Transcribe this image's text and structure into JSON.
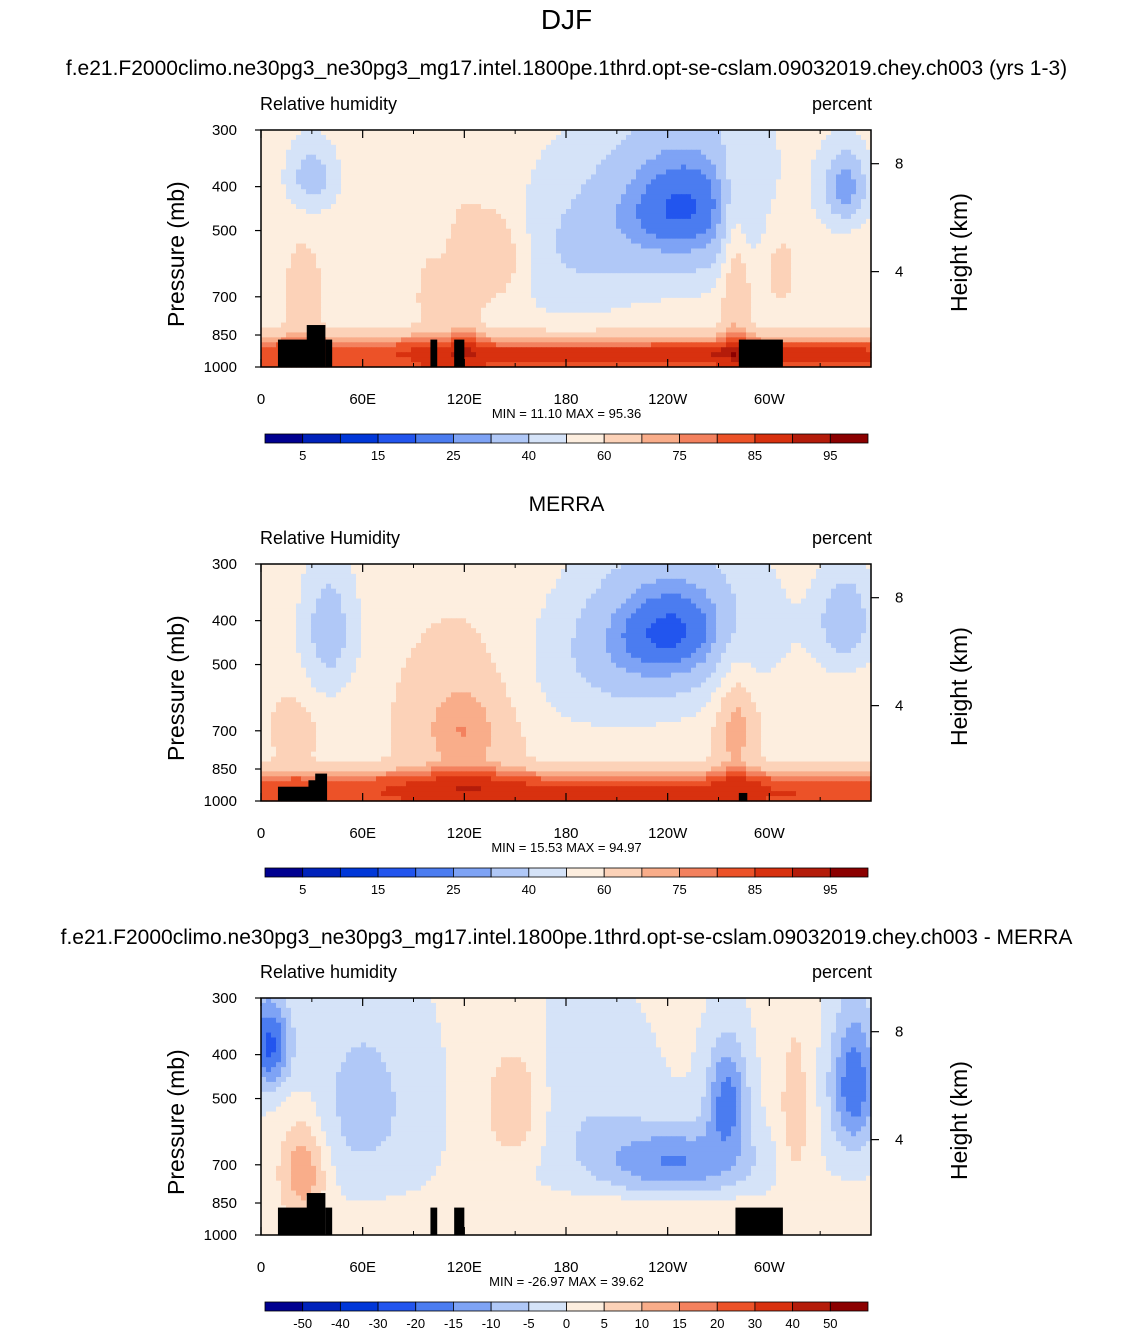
{
  "figure": {
    "title": "DJF",
    "panel_titles": [
      "f.e21.F2000climo.ne30pg3_ne30pg3_mg17.intel.1800pe.1thrd.opt-se-cslam.09032019.chey.ch003 (yrs 1-3)",
      "MERRA",
      "f.e21.F2000climo.ne30pg3_ne30pg3_mg17.intel.1800pe.1thrd.opt-se-cslam.09032019.chey.ch003 - MERRA"
    ]
  },
  "chart_data": [
    {
      "type": "heatmap",
      "left_label": "Relative humidity",
      "right_label": "percent",
      "ylabel": "Pressure (mb)",
      "y2label": "Height (km)",
      "x_ticks": [
        "0",
        "60E",
        "120E",
        "180",
        "120W",
        "60W"
      ],
      "x_tick_lon": [
        0,
        60,
        120,
        180,
        240,
        300
      ],
      "xlim": [
        0,
        360
      ],
      "y_ticks": [
        "300",
        "400",
        "500",
        "700",
        "850",
        "1000"
      ],
      "y_tick_p": [
        300,
        400,
        500,
        700,
        850,
        1000
      ],
      "ylim": [
        1000,
        300
      ],
      "y2_ticks": [
        "8",
        "4"
      ],
      "stats": "MIN =  11.10  MAX =  95.36",
      "min": 11.1,
      "max": 95.36,
      "colorbar_labels": [
        "5",
        "15",
        "25",
        "40",
        "60",
        "75",
        "85",
        "95"
      ],
      "colorbar_colors": [
        "#000090",
        "#0022bb",
        "#0037d8",
        "#2255ee",
        "#4b7cf0",
        "#7ea3f5",
        "#b0c8f7",
        "#d5e3f8",
        "#fdeedf",
        "#fcd2b8",
        "#f9ad8a",
        "#f3815e",
        "#ec5228",
        "#d8310f",
        "#b41c0a",
        "#8b0000"
      ],
      "z_levels": [
        5,
        10,
        15,
        20,
        25,
        30,
        40,
        50,
        60,
        70,
        75,
        80,
        85,
        90,
        95
      ]
    },
    {
      "type": "heatmap",
      "left_label": "Relative Humidity",
      "right_label": "percent",
      "ylabel": "Pressure (mb)",
      "y2label": "Height (km)",
      "x_ticks": [
        "0",
        "60E",
        "120E",
        "180",
        "120W",
        "60W"
      ],
      "x_tick_lon": [
        0,
        60,
        120,
        180,
        240,
        300
      ],
      "xlim": [
        0,
        360
      ],
      "y_ticks": [
        "300",
        "400",
        "500",
        "700",
        "850",
        "1000"
      ],
      "y_tick_p": [
        300,
        400,
        500,
        700,
        850,
        1000
      ],
      "ylim": [
        1000,
        300
      ],
      "y2_ticks": [
        "8",
        "4"
      ],
      "stats": "MIN =  15.53  MAX =  94.97",
      "min": 15.53,
      "max": 94.97,
      "colorbar_labels": [
        "5",
        "15",
        "25",
        "40",
        "60",
        "75",
        "85",
        "95"
      ],
      "colorbar_colors": [
        "#000090",
        "#0022bb",
        "#0037d8",
        "#2255ee",
        "#4b7cf0",
        "#7ea3f5",
        "#b0c8f7",
        "#d5e3f8",
        "#fdeedf",
        "#fcd2b8",
        "#f9ad8a",
        "#f3815e",
        "#ec5228",
        "#d8310f",
        "#b41c0a",
        "#8b0000"
      ],
      "z_levels": [
        5,
        10,
        15,
        20,
        25,
        30,
        40,
        50,
        60,
        70,
        75,
        80,
        85,
        90,
        95
      ]
    },
    {
      "type": "heatmap",
      "left_label": "Relative humidity",
      "right_label": "percent",
      "ylabel": "Pressure (mb)",
      "y2label": "Height (km)",
      "x_ticks": [
        "0",
        "60E",
        "120E",
        "180",
        "120W",
        "60W"
      ],
      "x_tick_lon": [
        0,
        60,
        120,
        180,
        240,
        300
      ],
      "xlim": [
        0,
        360
      ],
      "y_ticks": [
        "300",
        "400",
        "500",
        "700",
        "850",
        "1000"
      ],
      "y_tick_p": [
        300,
        400,
        500,
        700,
        850,
        1000
      ],
      "ylim": [
        1000,
        300
      ],
      "y2_ticks": [
        "8",
        "4"
      ],
      "stats": "MIN = -26.97  MAX =  39.62",
      "min": -26.97,
      "max": 39.62,
      "colorbar_labels": [
        "-50",
        "-40",
        "-30",
        "-20",
        "-15",
        "-10",
        "-5",
        "0",
        "5",
        "10",
        "15",
        "20",
        "30",
        "40",
        "50"
      ],
      "colorbar_colors": [
        "#000090",
        "#0022bb",
        "#0037d8",
        "#2255ee",
        "#4b7cf0",
        "#7ea3f5",
        "#b0c8f7",
        "#d5e3f8",
        "#fdeedf",
        "#fcd2b8",
        "#f9ad8a",
        "#f3815e",
        "#ec5228",
        "#d8310f",
        "#b41c0a",
        "#8b0000"
      ],
      "z_levels": [
        -50,
        -40,
        -30,
        -20,
        -15,
        -10,
        -5,
        0,
        5,
        10,
        15,
        20,
        30,
        40,
        50
      ]
    }
  ]
}
